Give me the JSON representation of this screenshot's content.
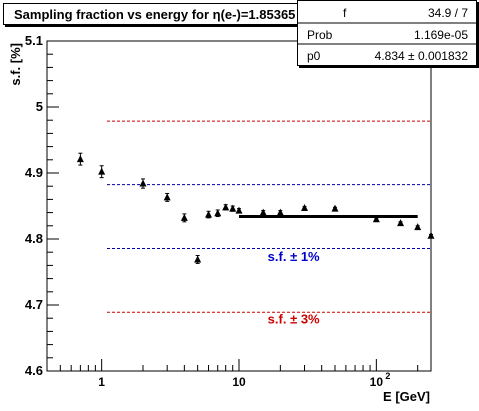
{
  "title_prefix": "Sampling fraction vs energy for ",
  "title_eta": "η(e-)=1.85365",
  "stats": {
    "rows": [
      {
        "key": "f",
        "value": "34.9 / 7"
      },
      {
        "key": "Prob",
        "value": "1.169e-05"
      },
      {
        "key": "p0",
        "value": "4.834 ± 0.001832"
      }
    ]
  },
  "chart_data": {
    "type": "scatter",
    "xlabel": "E [GeV]",
    "ylabel": "s.f. [%]",
    "xscale": "log",
    "xlim": [
      0.4,
      250
    ],
    "ylim": [
      4.6,
      5.1
    ],
    "y_ticks": [
      "4.6",
      "4.7",
      "4.8",
      "4.9",
      "5",
      "5.1"
    ],
    "x_ticks": [
      {
        "value": 1,
        "label": "1"
      },
      {
        "value": 10,
        "label": "10"
      },
      {
        "value": 100,
        "label": "10",
        "sup": "2"
      }
    ],
    "points": [
      {
        "x": 0.7,
        "y": 4.921,
        "err": 0.009
      },
      {
        "x": 1.0,
        "y": 4.902,
        "err": 0.009
      },
      {
        "x": 2.0,
        "y": 4.884,
        "err": 0.007
      },
      {
        "x": 3.0,
        "y": 4.863,
        "err": 0.006
      },
      {
        "x": 4.0,
        "y": 4.832,
        "err": 0.006
      },
      {
        "x": 5.0,
        "y": 4.769,
        "err": 0.006
      },
      {
        "x": 6.0,
        "y": 4.837,
        "err": 0.005
      },
      {
        "x": 7.0,
        "y": 4.839,
        "err": 0.005
      },
      {
        "x": 8.0,
        "y": 4.848,
        "err": 0.004
      },
      {
        "x": 9.0,
        "y": 4.846,
        "err": 0.004
      },
      {
        "x": 10.0,
        "y": 4.843,
        "err": 0.003
      },
      {
        "x": 15.0,
        "y": 4.84,
        "err": 0.003
      },
      {
        "x": 20.0,
        "y": 4.84,
        "err": 0.003
      },
      {
        "x": 30.0,
        "y": 4.847,
        "err": 0.002
      },
      {
        "x": 50.0,
        "y": 4.846,
        "err": 0.002
      },
      {
        "x": 100.0,
        "y": 4.83,
        "err": 0.002
      },
      {
        "x": 150.0,
        "y": 4.824,
        "err": 0.002
      },
      {
        "x": 200.0,
        "y": 4.818,
        "err": 0.002
      },
      {
        "x": 250.0,
        "y": 4.805,
        "err": 0.002
      }
    ],
    "fit": {
      "x_from": 10,
      "x_to": 200,
      "y": 4.834,
      "color": "#000000"
    },
    "bands": [
      {
        "y": 4.9786,
        "color": "#cc0000"
      },
      {
        "y": 4.8823,
        "color": "#0000aa"
      },
      {
        "y": 4.7857,
        "color": "#0000aa"
      },
      {
        "y": 4.689,
        "color": "#cc0000"
      }
    ],
    "band_labels": [
      {
        "text": "s.f. ± 1%",
        "x": 25,
        "y": 4.767,
        "color": "#0000cc"
      },
      {
        "text": "s.f. ± 3%",
        "x": 25,
        "y": 4.672,
        "color": "#cc0000"
      }
    ]
  }
}
